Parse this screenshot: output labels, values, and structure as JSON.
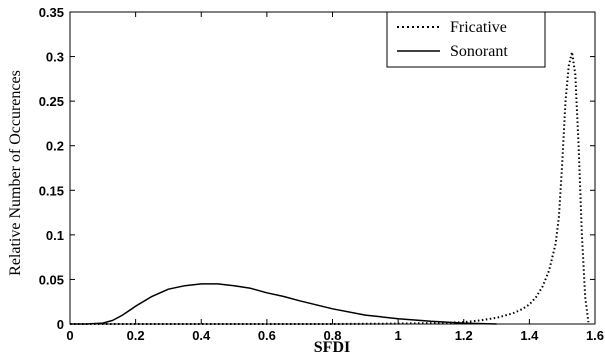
{
  "chart_data": {
    "type": "line",
    "title": "",
    "xlabel": "SFDI",
    "ylabel": "Relative Number of Occurences",
    "xlim": [
      0,
      1.6
    ],
    "ylim": [
      0,
      0.35
    ],
    "xticks": [
      0,
      0.2,
      0.4,
      0.6,
      0.8,
      1,
      1.2,
      1.4,
      1.6
    ],
    "xtick_labels": [
      "0",
      "0.2",
      "0.4",
      "0.6",
      "0.8",
      "1",
      "1.2",
      "1.4",
      "1.6"
    ],
    "yticks": [
      0,
      0.05,
      0.1,
      0.15,
      0.2,
      0.25,
      0.3,
      0.35
    ],
    "ytick_labels": [
      "0",
      "0.05",
      "0.1",
      "0.15",
      "0.2",
      "0.25",
      "0.3",
      "0.35"
    ],
    "grid": false,
    "legend_position": "top-right",
    "series": [
      {
        "name": "Fricative",
        "style": "dotted",
        "color": "#000000",
        "x": [
          0,
          0.8,
          1.0,
          1.1,
          1.2,
          1.25,
          1.3,
          1.35,
          1.38,
          1.4,
          1.42,
          1.44,
          1.46,
          1.48,
          1.49,
          1.5,
          1.51,
          1.52,
          1.53,
          1.54,
          1.55,
          1.56,
          1.57,
          1.58
        ],
        "y": [
          0,
          0,
          0.0005,
          0.001,
          0.002,
          0.004,
          0.007,
          0.012,
          0.017,
          0.022,
          0.03,
          0.042,
          0.06,
          0.09,
          0.12,
          0.18,
          0.25,
          0.29,
          0.305,
          0.28,
          0.2,
          0.1,
          0.03,
          0.002
        ]
      },
      {
        "name": "Sonorant",
        "style": "solid",
        "color": "#000000",
        "x": [
          0,
          0.05,
          0.1,
          0.13,
          0.16,
          0.2,
          0.25,
          0.3,
          0.35,
          0.4,
          0.45,
          0.5,
          0.55,
          0.6,
          0.65,
          0.7,
          0.8,
          0.9,
          1.0,
          1.1,
          1.2,
          1.3
        ],
        "y": [
          0,
          0,
          0.001,
          0.004,
          0.01,
          0.02,
          0.031,
          0.039,
          0.043,
          0.045,
          0.045,
          0.043,
          0.04,
          0.035,
          0.031,
          0.026,
          0.017,
          0.01,
          0.006,
          0.003,
          0.001,
          0
        ]
      }
    ]
  }
}
